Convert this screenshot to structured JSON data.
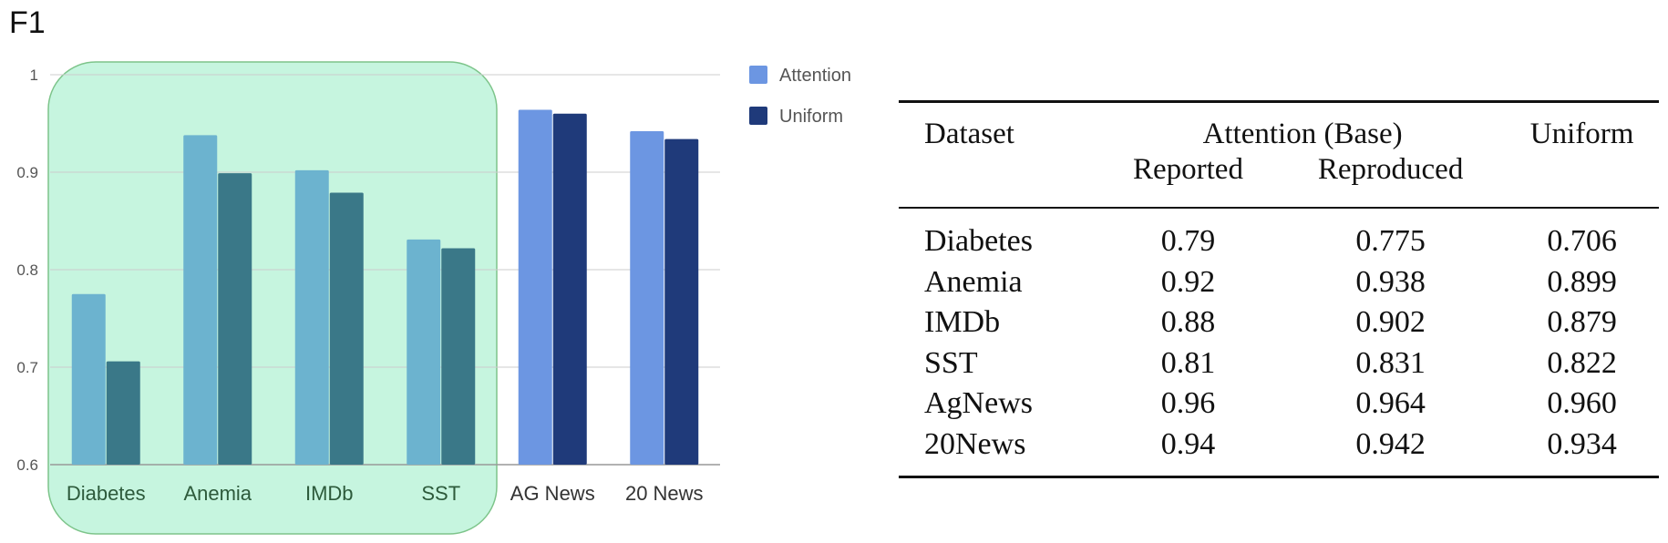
{
  "chart_data": {
    "type": "bar",
    "title": "F1",
    "xlabel": "",
    "ylabel": "F1",
    "ylim": [
      0.6,
      1.0
    ],
    "yticks": [
      "0.6",
      "0.7",
      "0.8",
      "0.9",
      "1"
    ],
    "grid": true,
    "legend_position": "top-right",
    "categories": [
      "Diabetes",
      "Anemia",
      "IMDb",
      "SST",
      "AG News",
      "20 News"
    ],
    "series": [
      {
        "name": "Attention",
        "values": [
          0.775,
          0.938,
          0.902,
          0.831,
          0.964,
          0.942
        ]
      },
      {
        "name": "Uniform",
        "values": [
          0.706,
          0.899,
          0.879,
          0.822,
          0.96,
          0.934
        ]
      }
    ],
    "highlight": {
      "categories": [
        "Diabetes",
        "Anemia",
        "IMDb",
        "SST"
      ],
      "color": "#c6f5df"
    },
    "colors": {
      "attention": "#6c96e2",
      "uniform": "#1f3a7a",
      "attention_highlighted": "#6cb3cf",
      "uniform_highlighted": "#3a7888",
      "highlight_fill": "#c6f5df",
      "highlight_stroke": "#7dc48a",
      "grid": "#cccccc"
    }
  },
  "table": {
    "headers": {
      "dataset": "Dataset",
      "attention_base": "Attention (Base)",
      "reported": "Reported",
      "reproduced": "Reproduced",
      "uniform": "Uniform"
    },
    "rows": [
      {
        "dataset": "Diabetes",
        "reported": "0.79",
        "reproduced": "0.775",
        "uniform": "0.706"
      },
      {
        "dataset": "Anemia",
        "reported": "0.92",
        "reproduced": "0.938",
        "uniform": "0.899"
      },
      {
        "dataset": "IMDb",
        "reported": "0.88",
        "reproduced": "0.902",
        "uniform": "0.879"
      },
      {
        "dataset": "SST",
        "reported": "0.81",
        "reproduced": "0.831",
        "uniform": "0.822"
      },
      {
        "dataset": "AgNews",
        "reported": "0.96",
        "reproduced": "0.964",
        "uniform": "0.960"
      },
      {
        "dataset": "20News",
        "reported": "0.94",
        "reproduced": "0.942",
        "uniform": "0.934"
      }
    ]
  }
}
